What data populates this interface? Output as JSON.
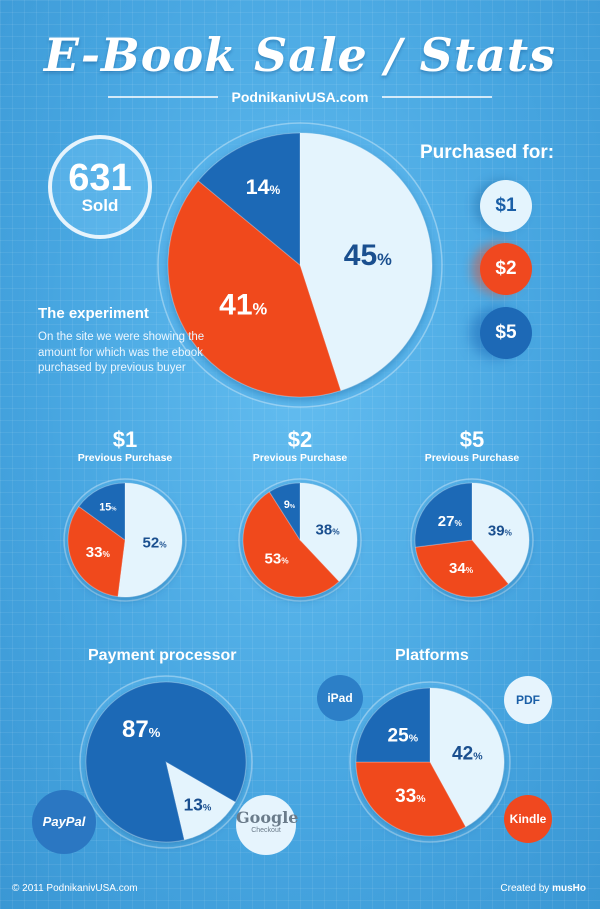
{
  "header": {
    "title": "E-Book Sale / Stats",
    "subtitle": "PodnikanivUSA.com"
  },
  "sold": {
    "count": "631",
    "label": "Sold"
  },
  "experiment": {
    "title": "The experiment",
    "text": "On the site we were showing the amount for which was the ebook purchased by previous buyer"
  },
  "purchased": {
    "title": "Purchased for:",
    "prices": [
      "$1",
      "$2",
      "$5"
    ]
  },
  "sections": {
    "s1": {
      "price": "$1",
      "sub": "Previous Purchase"
    },
    "s2": {
      "price": "$2",
      "sub": "Previous Purchase"
    },
    "s3": {
      "price": "$5",
      "sub": "Previous Purchase"
    }
  },
  "payment": {
    "title": "Payment processor",
    "paypal": "PayPal",
    "google": "Google",
    "google_sub": "Checkout"
  },
  "platforms": {
    "title": "Platforms",
    "ipad": "iPad",
    "pdf": "PDF",
    "kindle": "Kindle"
  },
  "footer": {
    "left": "© 2011 PodnikanivUSA.com",
    "right_prefix": "Created by",
    "right_author": "musHo"
  },
  "colors": {
    "light": "#e4f4fd",
    "red": "#f0481f",
    "blue": "#1d69b6",
    "darkText": "#1a4f8f"
  },
  "chart_data": [
    {
      "type": "pie",
      "title": "Purchased for",
      "slices": [
        {
          "label": "$1",
          "value": 45,
          "color": "light"
        },
        {
          "label": "$2",
          "value": 41,
          "color": "red"
        },
        {
          "label": "$5",
          "value": 14,
          "color": "blue"
        }
      ]
    },
    {
      "type": "pie",
      "title": "$1 Previous Purchase",
      "slices": [
        {
          "label": "$1",
          "value": 52,
          "color": "light"
        },
        {
          "label": "$2",
          "value": 33,
          "color": "red"
        },
        {
          "label": "$5",
          "value": 15,
          "color": "blue"
        }
      ]
    },
    {
      "type": "pie",
      "title": "$2 Previous Purchase",
      "slices": [
        {
          "label": "$1",
          "value": 38,
          "color": "light"
        },
        {
          "label": "$2",
          "value": 53,
          "color": "red"
        },
        {
          "label": "$5",
          "value": 9,
          "color": "blue"
        }
      ]
    },
    {
      "type": "pie",
      "title": "$5 Previous Purchase",
      "slices": [
        {
          "label": "$1",
          "value": 39,
          "color": "light"
        },
        {
          "label": "$2",
          "value": 34,
          "color": "red"
        },
        {
          "label": "$5",
          "value": 27,
          "color": "blue"
        }
      ]
    },
    {
      "type": "pie",
      "title": "Payment processor",
      "slices": [
        {
          "label": "Google Checkout",
          "value": 13,
          "color": "light"
        },
        {
          "label": "PayPal",
          "value": 87,
          "color": "blue"
        }
      ]
    },
    {
      "type": "pie",
      "title": "Platforms",
      "slices": [
        {
          "label": "PDF",
          "value": 42,
          "color": "light"
        },
        {
          "label": "Kindle",
          "value": 33,
          "color": "red"
        },
        {
          "label": "iPad",
          "value": 25,
          "color": "blue"
        }
      ]
    }
  ]
}
